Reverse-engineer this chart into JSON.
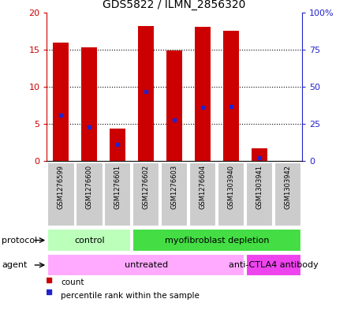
{
  "title": "GDS5822 / ILMN_2856320",
  "samples": [
    "GSM1276599",
    "GSM1276600",
    "GSM1276601",
    "GSM1276602",
    "GSM1276603",
    "GSM1276604",
    "GSM1303940",
    "GSM1303941",
    "GSM1303942"
  ],
  "counts": [
    15.9,
    15.3,
    4.4,
    18.2,
    14.9,
    18.1,
    17.5,
    1.7,
    0.0
  ],
  "percentile_ranks": [
    31.0,
    23.0,
    11.5,
    47.0,
    27.5,
    36.0,
    37.0,
    2.5,
    0.0
  ],
  "ylim_left": [
    0,
    20
  ],
  "ylim_right": [
    0,
    100
  ],
  "yticks_left": [
    0,
    5,
    10,
    15,
    20
  ],
  "ytick_labels_left": [
    "0",
    "5",
    "10",
    "15",
    "20"
  ],
  "yticks_right": [
    0,
    25,
    50,
    75,
    100
  ],
  "ytick_labels_right": [
    "0",
    "25",
    "50",
    "75",
    "100%"
  ],
  "bar_color": "#cc0000",
  "dot_color": "#2222cc",
  "bar_width": 0.55,
  "protocol_groups": [
    {
      "label": "control",
      "start": 0,
      "end": 3,
      "color": "#bbffbb"
    },
    {
      "label": "myofibroblast depletion",
      "start": 3,
      "end": 9,
      "color": "#44dd44"
    }
  ],
  "agent_groups": [
    {
      "label": "untreated",
      "start": 0,
      "end": 7,
      "color": "#ffaaff"
    },
    {
      "label": "anti-CTLA4 antibody",
      "start": 7,
      "end": 9,
      "color": "#ee44ee"
    }
  ],
  "protocol_label": "protocol",
  "agent_label": "agent",
  "legend_count_label": "count",
  "legend_percentile_label": "percentile rank within the sample",
  "sample_bg_color": "#cccccc",
  "plot_bg_color": "#ffffff",
  "left_axis_color": "#cc0000",
  "right_axis_color": "#2222cc",
  "title_fontsize": 10
}
